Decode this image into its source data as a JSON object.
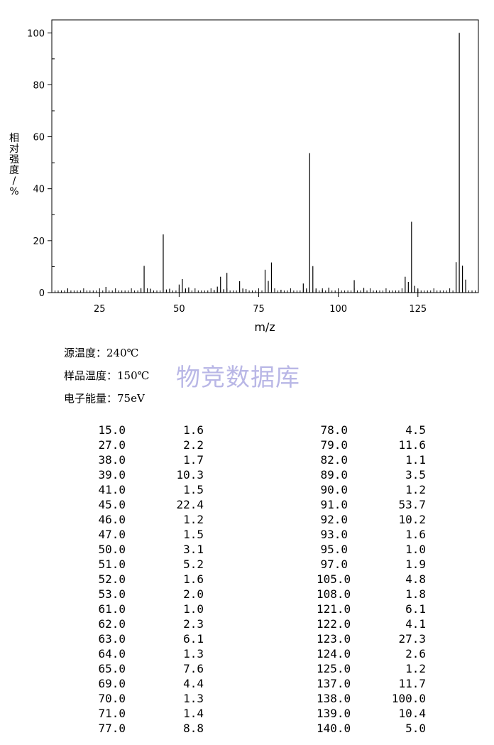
{
  "chart_data": {
    "type": "bar",
    "xlabel": "m/z",
    "ylabel": [
      "相",
      "对",
      "强",
      "度",
      "/",
      "%"
    ],
    "xlim": [
      10,
      144
    ],
    "ylim": [
      0,
      105
    ],
    "xticks": [
      25,
      50,
      75,
      100,
      125
    ],
    "yticks": [
      0,
      20,
      40,
      60,
      80,
      100
    ],
    "x": [
      15,
      27,
      38,
      39,
      41,
      45,
      46,
      47,
      50,
      51,
      52,
      53,
      61,
      62,
      63,
      64,
      65,
      69,
      70,
      71,
      77,
      78,
      79,
      82,
      89,
      90,
      91,
      92,
      93,
      95,
      97,
      105,
      108,
      121,
      122,
      123,
      124,
      125,
      137,
      138,
      139,
      140
    ],
    "values": [
      1.6,
      2.2,
      1.7,
      10.3,
      1.5,
      22.4,
      1.2,
      1.5,
      3.1,
      5.2,
      1.6,
      2.0,
      1.0,
      2.3,
      6.1,
      1.3,
      7.6,
      4.4,
      1.3,
      1.4,
      8.8,
      4.5,
      11.6,
      1.1,
      3.5,
      1.2,
      53.7,
      10.2,
      1.6,
      1.0,
      1.9,
      4.8,
      1.8,
      6.1,
      4.1,
      27.3,
      2.6,
      1.2,
      11.7,
      100.0,
      10.4,
      5.0
    ]
  },
  "conditions": [
    {
      "label": "源温度：",
      "value": "240℃"
    },
    {
      "label": "样品温度：",
      "value": "150℃"
    },
    {
      "label": "电子能量：",
      "value": "75eV"
    }
  ],
  "watermark": "物竞数据库",
  "peak_table": {
    "left": [
      {
        "mz": "15.0",
        "intensity": "1.6"
      },
      {
        "mz": "27.0",
        "intensity": "2.2"
      },
      {
        "mz": "38.0",
        "intensity": "1.7"
      },
      {
        "mz": "39.0",
        "intensity": "10.3"
      },
      {
        "mz": "41.0",
        "intensity": "1.5"
      },
      {
        "mz": "45.0",
        "intensity": "22.4"
      },
      {
        "mz": "46.0",
        "intensity": "1.2"
      },
      {
        "mz": "47.0",
        "intensity": "1.5"
      },
      {
        "mz": "50.0",
        "intensity": "3.1"
      },
      {
        "mz": "51.0",
        "intensity": "5.2"
      },
      {
        "mz": "52.0",
        "intensity": "1.6"
      },
      {
        "mz": "53.0",
        "intensity": "2.0"
      },
      {
        "mz": "61.0",
        "intensity": "1.0"
      },
      {
        "mz": "62.0",
        "intensity": "2.3"
      },
      {
        "mz": "63.0",
        "intensity": "6.1"
      },
      {
        "mz": "64.0",
        "intensity": "1.3"
      },
      {
        "mz": "65.0",
        "intensity": "7.6"
      },
      {
        "mz": "69.0",
        "intensity": "4.4"
      },
      {
        "mz": "70.0",
        "intensity": "1.3"
      },
      {
        "mz": "71.0",
        "intensity": "1.4"
      },
      {
        "mz": "77.0",
        "intensity": "8.8"
      }
    ],
    "right": [
      {
        "mz": "78.0",
        "intensity": "4.5"
      },
      {
        "mz": "79.0",
        "intensity": "11.6"
      },
      {
        "mz": "82.0",
        "intensity": "1.1"
      },
      {
        "mz": "89.0",
        "intensity": "3.5"
      },
      {
        "mz": "90.0",
        "intensity": "1.2"
      },
      {
        "mz": "91.0",
        "intensity": "53.7"
      },
      {
        "mz": "92.0",
        "intensity": "10.2"
      },
      {
        "mz": "93.0",
        "intensity": "1.6"
      },
      {
        "mz": "95.0",
        "intensity": "1.0"
      },
      {
        "mz": "97.0",
        "intensity": "1.9"
      },
      {
        "mz": "105.0",
        "intensity": "4.8"
      },
      {
        "mz": "108.0",
        "intensity": "1.8"
      },
      {
        "mz": "121.0",
        "intensity": "6.1"
      },
      {
        "mz": "122.0",
        "intensity": "4.1"
      },
      {
        "mz": "123.0",
        "intensity": "27.3"
      },
      {
        "mz": "124.0",
        "intensity": "2.6"
      },
      {
        "mz": "125.0",
        "intensity": "1.2"
      },
      {
        "mz": "137.0",
        "intensity": "11.7"
      },
      {
        "mz": "138.0",
        "intensity": "100.0"
      },
      {
        "mz": "139.0",
        "intensity": "10.4"
      },
      {
        "mz": "140.0",
        "intensity": "5.0"
      }
    ]
  }
}
